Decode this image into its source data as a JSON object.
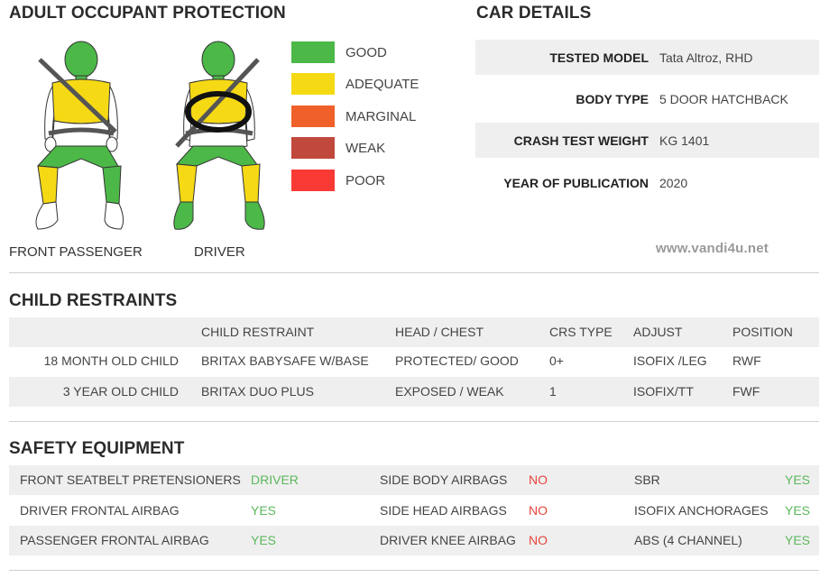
{
  "adult_occupant": {
    "title": "ADULT OCCUPANT PROTECTION",
    "front_passenger_label": "FRONT PASSENGER",
    "driver_label": "DRIVER",
    "legend": [
      {
        "label": "GOOD",
        "color": "#4cb848"
      },
      {
        "label": "ADEQUATE",
        "color": "#f5d915"
      },
      {
        "label": "MARGINAL",
        "color": "#f0602a"
      },
      {
        "label": "WEAK",
        "color": "#c0483d"
      },
      {
        "label": "POOR",
        "color": "#f93a34"
      }
    ]
  },
  "car_details": {
    "title": "CAR DETAILS",
    "rows": [
      {
        "label": "TESTED MODEL",
        "value": "Tata Altroz, RHD"
      },
      {
        "label": "BODY TYPE",
        "value": "5 DOOR HATCHBACK"
      },
      {
        "label": "CRASH TEST WEIGHT",
        "value": "KG 1401"
      },
      {
        "label": "YEAR OF PUBLICATION",
        "value": "2020"
      }
    ]
  },
  "watermark": "www.vandi4u.net",
  "child_restraints": {
    "title": "CHILD RESTRAINTS",
    "headers": [
      "CHILD RESTRAINT",
      "HEAD / CHEST",
      "CRS TYPE",
      "ADJUST",
      "POSITION"
    ],
    "rows": [
      {
        "age": "18 MONTH OLD CHILD",
        "restraint": "BRITAX BABYSAFE W/BASE",
        "head_chest": "PROTECTED/ GOOD",
        "crs_type": "0+",
        "adjust": "ISOFIX /LEG",
        "position": "RWF"
      },
      {
        "age": "3 YEAR OLD CHILD",
        "restraint": "BRITAX DUO PLUS",
        "head_chest": "EXPOSED / WEAK",
        "crs_type": "1",
        "adjust": "ISOFIX/TT",
        "position": "FWF"
      }
    ]
  },
  "safety_equipment": {
    "title": "SAFETY EQUIPMENT",
    "rows": [
      [
        {
          "label": "FRONT SEATBELT PRETENSIONERS",
          "value": "DRIVER",
          "status": "yes"
        },
        {
          "label": "SIDE BODY AIRBAGS",
          "value": "NO",
          "status": "no"
        },
        {
          "label": "SBR",
          "value": "YES",
          "status": "yes"
        }
      ],
      [
        {
          "label": "DRIVER FRONTAL AIRBAG",
          "value": "YES",
          "status": "yes"
        },
        {
          "label": "SIDE HEAD AIRBAGS",
          "value": "NO",
          "status": "no"
        },
        {
          "label": "ISOFIX ANCHORAGES",
          "value": "YES",
          "status": "yes"
        }
      ],
      [
        {
          "label": "PASSENGER FRONTAL AIRBAG",
          "value": "YES",
          "status": "yes"
        },
        {
          "label": "DRIVER KNEE AIRBAG",
          "value": "NO",
          "status": "no"
        },
        {
          "label": "ABS (4 CHANNEL)",
          "value": "YES",
          "status": "yes"
        }
      ]
    ],
    "colors": {
      "yes": "#5cb85c",
      "no": "#e8453c"
    }
  }
}
